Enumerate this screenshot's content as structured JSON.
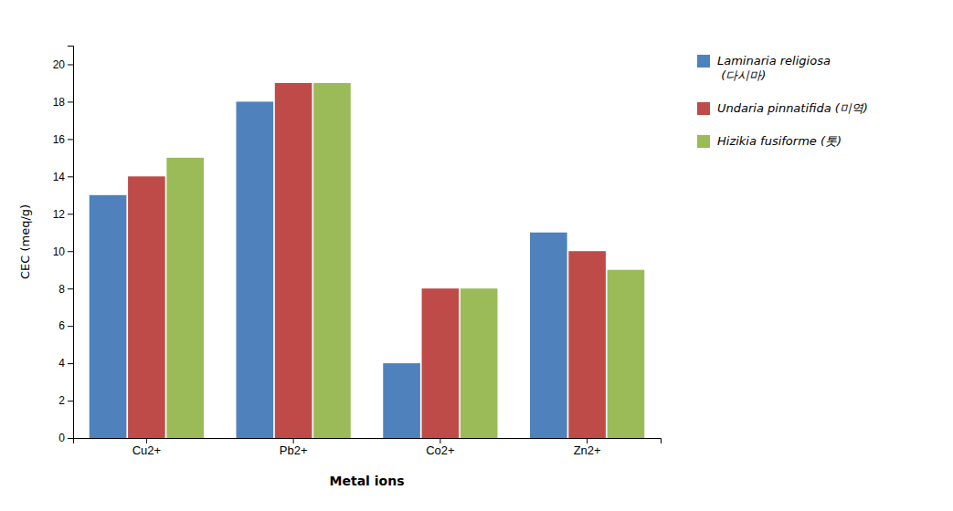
{
  "chart_data": {
    "type": "bar",
    "categories": [
      "Cu2+",
      "Pb2+",
      "Co2+",
      "Zn2+"
    ],
    "series": [
      {
        "name": "Laminaria religiosa\n (다시마)",
        "color": "#4F81BD",
        "values": [
          13.0,
          18.0,
          4.0,
          11.0
        ]
      },
      {
        "name": "Undaria pinnatifida (미역)",
        "color": "#BE4B48",
        "values": [
          14.0,
          19.0,
          8.0,
          10.0
        ]
      },
      {
        "name": "Hizikia fusiforme (톳)",
        "color": "#9BBB59",
        "values": [
          15.0,
          19.0,
          8.0,
          9.0
        ]
      }
    ],
    "xlabel": "Metal ions",
    "ylabel": "CEC (meq/g)",
    "ylim": [
      0,
      21
    ],
    "yticks": [
      0,
      2,
      4,
      6,
      8,
      10,
      12,
      14,
      16,
      18,
      20
    ],
    "grid": false,
    "legend": "right"
  }
}
